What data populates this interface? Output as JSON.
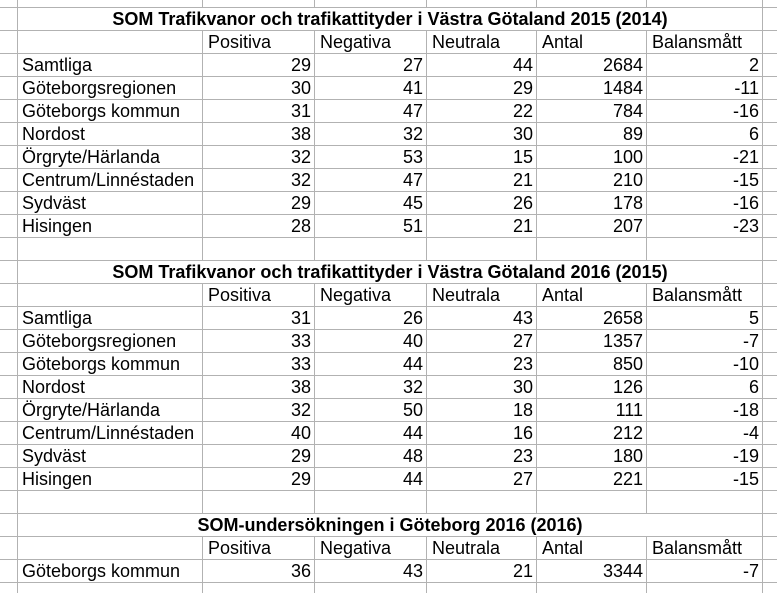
{
  "colors": {
    "background": "#ffffff",
    "gridline": "#b2b2b2",
    "text": "#000000"
  },
  "tables": [
    {
      "title": "SOM Trafikvanor och trafikattityder i Västra Götaland 2015 (2014)",
      "headers": [
        "Positiva",
        "Negativa",
        "Neutrala",
        "Antal",
        "Balansmått"
      ],
      "rows": [
        {
          "label": "Samtliga",
          "values": [
            29,
            27,
            44,
            2684,
            2
          ]
        },
        {
          "label": "Göteborgsregionen",
          "values": [
            30,
            41,
            29,
            1484,
            -11
          ]
        },
        {
          "label": "Göteborgs kommun",
          "values": [
            31,
            47,
            22,
            784,
            -16
          ]
        },
        {
          "label": "Nordost",
          "values": [
            38,
            32,
            30,
            89,
            6
          ]
        },
        {
          "label": "Örgryte/Härlanda",
          "values": [
            32,
            53,
            15,
            100,
            -21
          ]
        },
        {
          "label": "Centrum/Linnéstaden",
          "values": [
            32,
            47,
            21,
            210,
            -15
          ]
        },
        {
          "label": "Sydväst",
          "values": [
            29,
            45,
            26,
            178,
            -16
          ]
        },
        {
          "label": "Hisingen",
          "values": [
            28,
            51,
            21,
            207,
            -23
          ]
        }
      ]
    },
    {
      "title": "SOM Trafikvanor och trafikattityder i Västra Götaland 2016 (2015)",
      "headers": [
        "Positiva",
        "Negativa",
        "Neutrala",
        "Antal",
        "Balansmått"
      ],
      "rows": [
        {
          "label": "Samtliga",
          "values": [
            31,
            26,
            43,
            2658,
            5
          ]
        },
        {
          "label": "Göteborgsregionen",
          "values": [
            33,
            40,
            27,
            1357,
            -7
          ]
        },
        {
          "label": "Göteborgs kommun",
          "values": [
            33,
            44,
            23,
            850,
            -10
          ]
        },
        {
          "label": "Nordost",
          "values": [
            38,
            32,
            30,
            126,
            6
          ]
        },
        {
          "label": "Örgryte/Härlanda",
          "values": [
            32,
            50,
            18,
            111,
            -18
          ]
        },
        {
          "label": "Centrum/Linnéstaden",
          "values": [
            40,
            44,
            16,
            212,
            -4
          ]
        },
        {
          "label": "Sydväst",
          "values": [
            29,
            48,
            23,
            180,
            -19
          ]
        },
        {
          "label": "Hisingen",
          "values": [
            29,
            44,
            27,
            221,
            -15
          ]
        }
      ]
    },
    {
      "title": "SOM-undersökningen i Göteborg 2016 (2016)",
      "headers": [
        "Positiva",
        "Negativa",
        "Neutrala",
        "Antal",
        "Balansmått"
      ],
      "rows": [
        {
          "label": "Göteborgs kommun",
          "values": [
            36,
            43,
            21,
            3344,
            -7
          ]
        }
      ]
    }
  ]
}
